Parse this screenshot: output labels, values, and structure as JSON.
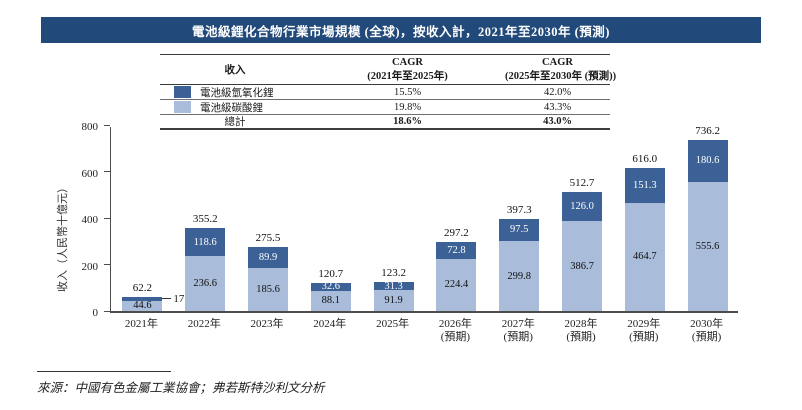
{
  "title": "電池級鋰化合物行業市場規模 (全球)，按收入計，2021年至2030年 (預測)",
  "colors": {
    "title_bar_bg": "#21497a",
    "hydroxide": "#3b6196",
    "carbonate": "#a9bcd9",
    "axis": "#4d4d4d"
  },
  "table": {
    "col1_header": "收入",
    "col2_header_line1": "CAGR",
    "col2_header_line2": "(2021年至2025年)",
    "col3_header_line1": "CAGR",
    "col3_header_line2": "(2025年至2030年 (預測))",
    "rows": [
      {
        "label": "電池級氫氧化鋰",
        "cagr_2021_2025": "15.5%",
        "cagr_2025_2030": "42.0%"
      },
      {
        "label": "電池級碳酸鋰",
        "cagr_2021_2025": "19.8%",
        "cagr_2025_2030": "43.3%"
      },
      {
        "label": "總計",
        "cagr_2021_2025": "18.6%",
        "cagr_2025_2030": "43.0%"
      }
    ]
  },
  "chart_data": {
    "type": "bar",
    "stacked": true,
    "title": "電池級鋰化合物行業市場規模 (全球)，按收入計，2021年至2030年 (預測)",
    "ylabel": "收入（人民幣十億元）",
    "ylim": [
      0,
      800
    ],
    "yticks": [
      0,
      200,
      400,
      600,
      800
    ],
    "grid": false,
    "legend_position": "table-top-left",
    "categories": [
      "2021年",
      "2022年",
      "2023年",
      "2024年",
      "2025年",
      "2026年",
      "2027年",
      "2028年",
      "2029年",
      "2030年"
    ],
    "category_suffix": [
      "",
      "",
      "",
      "",
      "",
      "(預期)",
      "(預期)",
      "(預期)",
      "(預期)",
      "(預期)"
    ],
    "series": [
      {
        "name": "電池級碳酸鋰",
        "color": "#a9bcd9",
        "values": [
          44.6,
          236.6,
          185.6,
          88.1,
          91.9,
          224.4,
          299.8,
          386.7,
          464.7,
          555.6
        ]
      },
      {
        "name": "電池級氫氧化鋰",
        "color": "#3b6196",
        "values": [
          17.6,
          118.6,
          89.9,
          32.6,
          31.3,
          72.8,
          97.5,
          126.0,
          151.3,
          180.6
        ]
      }
    ],
    "totals": [
      62.2,
      355.2,
      275.5,
      120.7,
      123.2,
      297.2,
      397.3,
      512.7,
      616.0,
      736.2
    ]
  },
  "source": "來源：中國有色金屬工業協會；弗若斯特沙利文分析"
}
